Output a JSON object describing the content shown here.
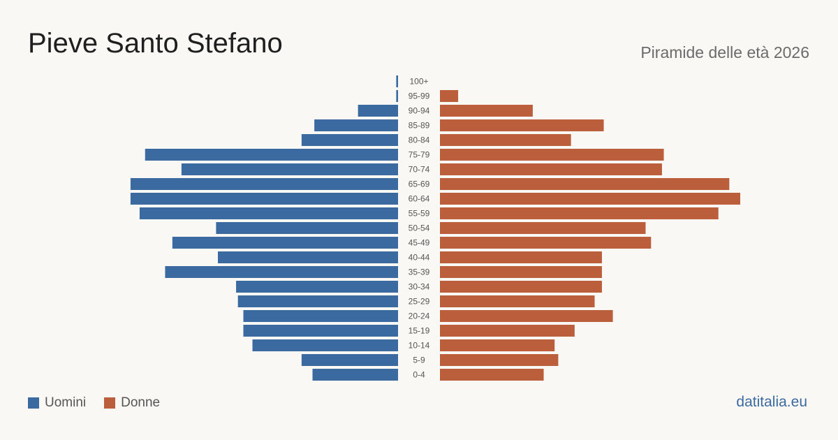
{
  "header": {
    "title": "Pieve Santo Stefano",
    "subtitle": "Piramide delle età 2026"
  },
  "legend": {
    "men_label": "Uomini",
    "women_label": "Donne"
  },
  "source": "datitalia.eu",
  "colors": {
    "men": "#3b6aa0",
    "women": "#bb5e3c",
    "background": "#faf8f4"
  },
  "chart_data": {
    "type": "bar",
    "orientation": "horizontal-pyramid",
    "categories": [
      "100+",
      "95-99",
      "90-94",
      "85-89",
      "80-84",
      "75-79",
      "70-74",
      "65-69",
      "60-64",
      "55-59",
      "50-54",
      "45-49",
      "40-44",
      "35-39",
      "30-34",
      "25-29",
      "20-24",
      "15-19",
      "10-14",
      "5-9",
      "0-4"
    ],
    "series": [
      {
        "name": "Uomini",
        "values": [
          1,
          1,
          22,
          46,
          53,
          139,
          119,
          147,
          147,
          142,
          100,
          124,
          99,
          128,
          89,
          88,
          85,
          85,
          80,
          53,
          47
        ]
      },
      {
        "name": "Donne",
        "values": [
          0,
          10,
          51,
          90,
          72,
          123,
          122,
          159,
          165,
          153,
          113,
          116,
          89,
          89,
          89,
          85,
          95,
          74,
          63,
          65,
          57
        ]
      }
    ],
    "legend_position": "bottom-left",
    "grid": false
  }
}
